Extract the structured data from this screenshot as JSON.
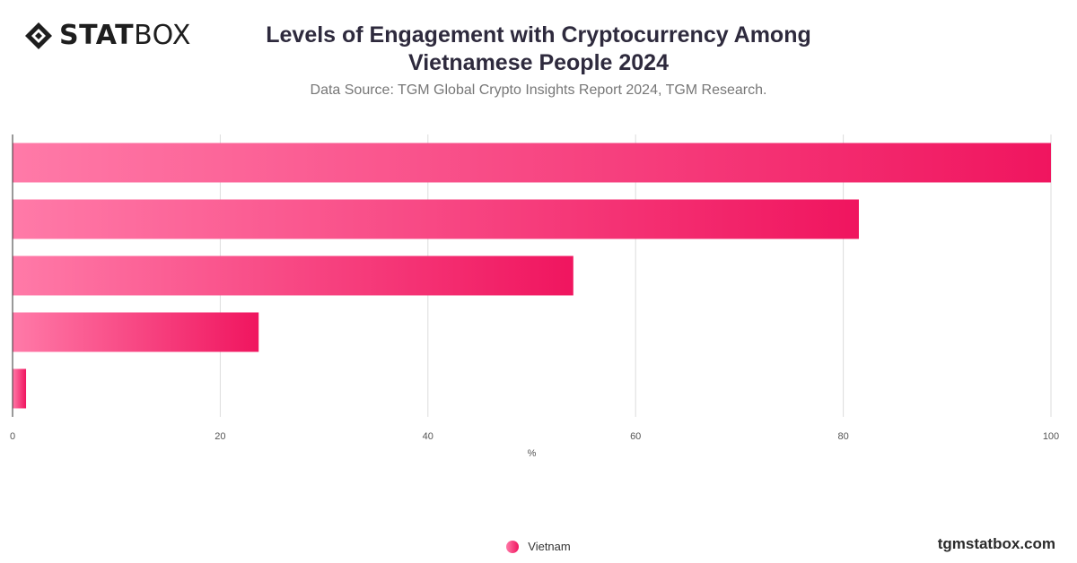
{
  "logo": {
    "part1": "STAT",
    "part2": "BOX"
  },
  "title": "Levels of Engagement with Cryptocurrency Among Vietnamese People 2024",
  "subtitle": "Data Source: TGM Global Crypto Insights Report 2024, TGM Research.",
  "brand": "tgmstatbox.com",
  "colors": {
    "bar_start": "#ff7aa8",
    "bar_end": "#f0155f",
    "grid": "#dddddd",
    "axis": "#333333"
  },
  "chart_data": {
    "type": "bar",
    "orientation": "horizontal",
    "categories": [
      "",
      "",
      "",
      "",
      ""
    ],
    "series": [
      {
        "name": "Vietnam",
        "values": [
          100,
          81.5,
          54,
          23.7,
          1.3
        ]
      }
    ],
    "xlabel": "%",
    "ylabel": "",
    "xlim": [
      0,
      100
    ],
    "xticks": [
      0,
      20,
      40,
      60,
      80,
      100
    ],
    "grid": true,
    "legend": "bottom-center"
  }
}
